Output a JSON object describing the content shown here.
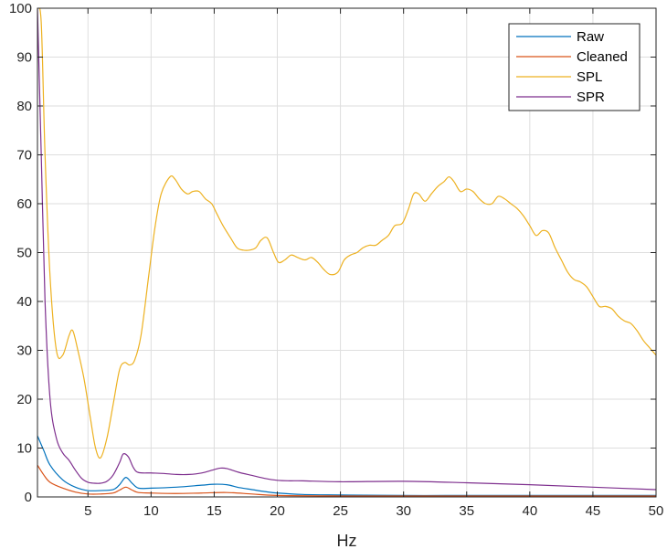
{
  "chart_data": {
    "type": "line",
    "title": "",
    "xlabel": "Hz",
    "ylabel": "",
    "xlim": [
      1,
      50
    ],
    "ylim": [
      0,
      100
    ],
    "grid": true,
    "legend_position": "top-right",
    "x_ticks": [
      5,
      10,
      15,
      20,
      25,
      30,
      35,
      40,
      45,
      50
    ],
    "y_ticks": [
      0,
      10,
      20,
      30,
      40,
      50,
      60,
      70,
      80,
      90,
      100
    ],
    "series": [
      {
        "name": "Raw",
        "color": "#0072BD",
        "x": [
          1,
          1.5,
          2,
          3,
          4,
          5,
          6,
          7,
          7.5,
          8,
          8.5,
          9,
          10,
          12,
          14,
          15,
          16,
          17,
          18,
          19,
          20,
          22,
          25,
          30,
          35,
          40,
          45,
          50
        ],
        "y": [
          12.5,
          9.5,
          6.5,
          3.5,
          2.0,
          1.3,
          1.3,
          1.5,
          2.5,
          4.0,
          2.8,
          1.8,
          1.8,
          2.0,
          2.4,
          2.6,
          2.5,
          1.9,
          1.5,
          1.1,
          0.8,
          0.5,
          0.4,
          0.3,
          0.3,
          0.3,
          0.3,
          0.3
        ]
      },
      {
        "name": "Cleaned",
        "color": "#D95319",
        "x": [
          1,
          1.5,
          2,
          3,
          4,
          5,
          6,
          7,
          7.5,
          8,
          8.5,
          9,
          10,
          12,
          14,
          16,
          18,
          20,
          25,
          30,
          35,
          40,
          45,
          50
        ],
        "y": [
          6.5,
          4.5,
          3.0,
          1.8,
          1.0,
          0.6,
          0.6,
          0.8,
          1.4,
          2.0,
          1.4,
          0.9,
          0.8,
          0.7,
          0.8,
          0.9,
          0.6,
          0.3,
          0.2,
          0.2,
          0.2,
          0.2,
          0.2,
          0.2
        ]
      },
      {
        "name": "SPL",
        "color": "#EDB120",
        "x": [
          1,
          1.3,
          1.6,
          2,
          2.5,
          3,
          3.5,
          3.8,
          4.2,
          4.7,
          5.2,
          5.6,
          6.0,
          6.5,
          7.0,
          7.5,
          7.9,
          8.3,
          8.7,
          9.2,
          9.8,
          10.3,
          10.8,
          11.5,
          11.9,
          12.4,
          12.9,
          13.3,
          13.8,
          14.3,
          14.8,
          15.2,
          15.7,
          16.3,
          16.8,
          17.3,
          17.8,
          18.3,
          18.7,
          19.2,
          19.7,
          20.1,
          20.6,
          21.1,
          21.6,
          22.2,
          22.7,
          23.2,
          23.7,
          24.2,
          24.8,
          25.3,
          25.8,
          26.3,
          26.8,
          27.3,
          27.8,
          28.3,
          28.8,
          29.3,
          29.9,
          30.4,
          30.8,
          31.2,
          31.7,
          32.2,
          32.7,
          33.2,
          33.6,
          34.0,
          34.5,
          35.0,
          35.5,
          36.0,
          36.5,
          37.0,
          37.5,
          38.0,
          38.5,
          39.0,
          39.5,
          40.0,
          40.5,
          41.0,
          41.5,
          42.0,
          42.5,
          43.0,
          43.5,
          44.0,
          44.5,
          45.0,
          45.5,
          46.0,
          46.5,
          47.0,
          47.5,
          48.0,
          48.5,
          49.0,
          49.5,
          50.0
        ],
        "y": [
          100,
          97,
          70,
          45,
          30,
          29,
          33,
          34,
          30,
          24,
          16,
          10,
          8,
          12,
          19,
          26,
          27.5,
          27,
          28,
          33,
          45,
          55,
          62,
          65.5,
          65,
          63,
          62,
          62.5,
          62.5,
          61,
          60,
          58,
          55.5,
          53,
          51,
          50.5,
          50.5,
          51,
          52.5,
          53,
          50,
          48,
          48.5,
          49.5,
          49,
          48.5,
          49,
          48,
          46.5,
          45.5,
          46,
          48.5,
          49.5,
          50,
          51,
          51.5,
          51.5,
          52.5,
          53.5,
          55.5,
          56,
          59,
          62,
          62,
          60.5,
          62,
          63.5,
          64.5,
          65.5,
          64.5,
          62.5,
          63,
          62.5,
          61,
          60,
          60,
          61.5,
          61,
          60,
          59,
          57.5,
          55.5,
          53.5,
          54.5,
          54,
          51,
          48.5,
          46,
          44.5,
          44,
          43,
          41,
          39,
          39,
          38.5,
          37,
          36,
          35.5,
          34,
          32,
          30.5,
          29
        ]
      },
      {
        "name": "SPR",
        "color": "#7E2F8E",
        "x": [
          1,
          1.3,
          1.6,
          2,
          2.5,
          3,
          3.5,
          4,
          4.5,
          5,
          5.5,
          6,
          6.5,
          7,
          7.5,
          7.8,
          8.2,
          8.6,
          9,
          10,
          11,
          12,
          13,
          14,
          15,
          15.5,
          16,
          17,
          18,
          19,
          20,
          21,
          22,
          25,
          30,
          35,
          40,
          45,
          50
        ],
        "y": [
          100,
          70,
          40,
          20,
          12,
          9,
          7.5,
          5.5,
          3.8,
          3.0,
          2.8,
          2.8,
          3.2,
          4.5,
          7.0,
          8.8,
          8.2,
          6.0,
          5.0,
          4.9,
          4.8,
          4.6,
          4.6,
          4.9,
          5.6,
          5.9,
          5.8,
          5.0,
          4.4,
          3.8,
          3.4,
          3.3,
          3.3,
          3.1,
          3.2,
          2.9,
          2.5,
          2.0,
          1.5
        ]
      }
    ]
  }
}
